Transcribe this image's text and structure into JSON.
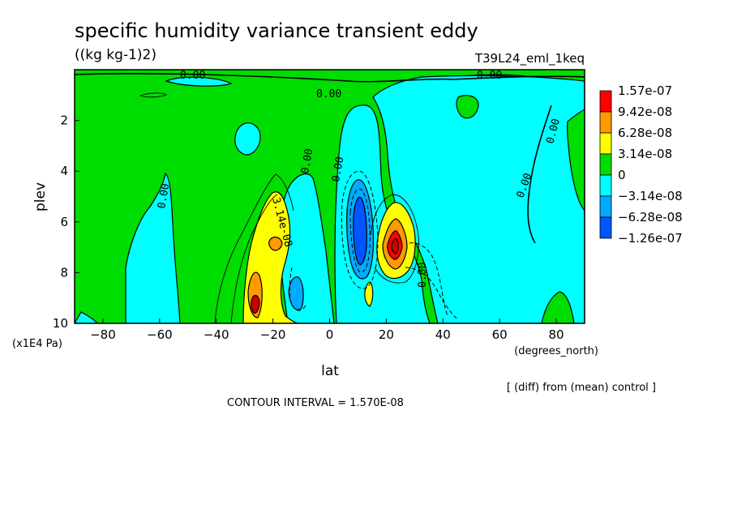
{
  "chart_data": {
    "type": "heatmap",
    "title": "specific humidity variance transient eddy",
    "units": "((kg kg-1)2)",
    "experiment": "T39L24_eml_1keq",
    "xlabel": "lat",
    "xunits": "(degrees_north)",
    "ylabel": "plev",
    "yunits": "(x1E4 Pa)",
    "xlim": [
      -90,
      90
    ],
    "ylim": [
      10,
      0
    ],
    "x_ticks": [
      "-80",
      "-60",
      "-40",
      "-20",
      "0",
      "20",
      "40",
      "60",
      "80"
    ],
    "y_ticks": [
      "2",
      "4",
      "6",
      "8",
      "10"
    ],
    "footnote": "[ (diff) from (mean) control ]",
    "contour_interval": "CONTOUR INTERVAL = 1.570E-08",
    "contour_labels": [
      "0.00",
      "0.00",
      "0.00",
      "0.00",
      "0.00",
      "0.00",
      "0.00",
      "0.00",
      "0.00",
      "3.14e-08"
    ],
    "colorbar": [
      {
        "label": "1.57e-07",
        "color": "#ff0000"
      },
      {
        "label": "9.42e-08",
        "color": "#ff9900"
      },
      {
        "label": "6.28e-08",
        "color": "#ffff00"
      },
      {
        "label": "3.14e-08",
        "color": "#00dd00"
      },
      {
        "label": "0",
        "color": "#00ffff"
      },
      {
        "label": "−3.14e-08",
        "color": "#00aaff"
      },
      {
        "label": "−6.28e-08",
        "color": "#0055ff"
      },
      {
        "label": "−1.26e-07",
        "color": null
      }
    ],
    "features": [
      {
        "lat": -25,
        "plev": 9.2,
        "level": "positive max"
      },
      {
        "lat": -22,
        "plev": 7.0,
        "level": "positive"
      },
      {
        "lat": 10,
        "plev": 6.3,
        "level": "negative min"
      },
      {
        "lat": 22,
        "plev": 7.0,
        "level": "positive max"
      },
      {
        "lat": -13,
        "plev": 8.8,
        "level": "negative"
      }
    ]
  }
}
